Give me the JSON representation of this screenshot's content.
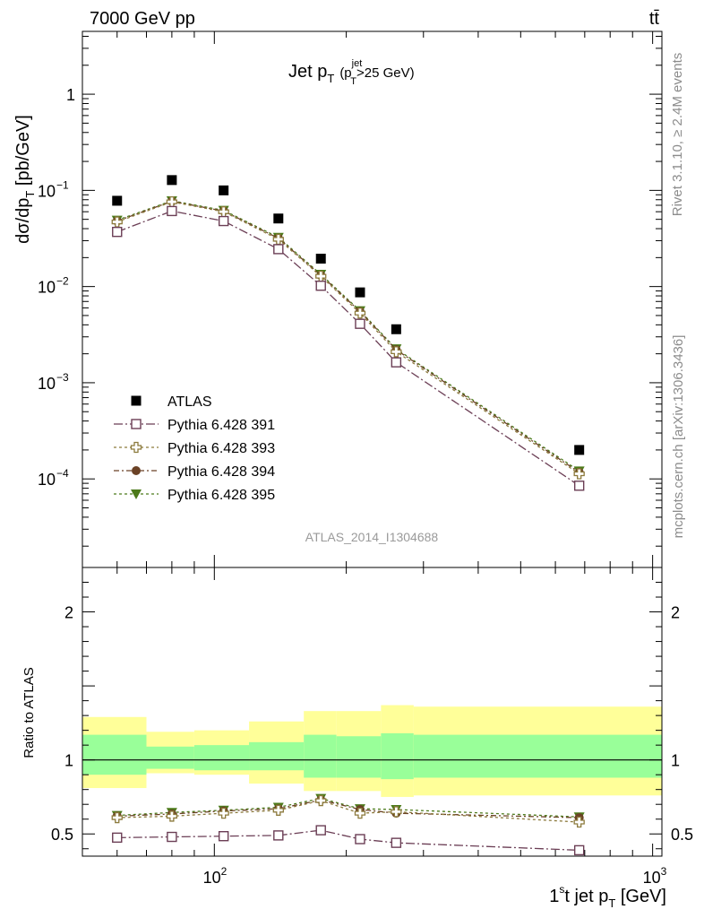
{
  "header": {
    "energy_label": "7000 GeV pp",
    "process_label": "tt̄",
    "rivet_label": "Rivet 3.1.10, ≥ 2.4M events",
    "mcplots_label": "mcplots.cern.ch [arXiv:1306.3436]",
    "analysis_label": "ATLAS_2014_I1304688",
    "plot_title_main": "Jet p",
    "plot_title_sub": "T",
    "plot_title_paren_open": "(p",
    "plot_title_paren_sup": "jet",
    "plot_title_paren_sub": "T",
    "plot_title_paren_rest": ">25 GeV)"
  },
  "axes": {
    "y_main_label_a": "dσ/dp",
    "y_main_label_sub": "T",
    "y_main_label_b": " [pb/GeV]",
    "y_ratio_label": "Ratio to ATLAS",
    "x_label_a": "1",
    "x_label_sup": "s",
    "x_label_b": "t jet p",
    "x_label_sub": "T",
    "x_label_c": " [GeV]",
    "x_tick_base_100": "10",
    "x_tick_exp_100": "2",
    "x_tick_base_1000": "10",
    "x_tick_exp_1000": "3",
    "y_ticks_main": [
      {
        "value": 1,
        "label": "1",
        "exp": ""
      },
      {
        "value": 0.1,
        "label": "10",
        "exp": "−1"
      },
      {
        "value": 0.01,
        "label": "10",
        "exp": "−2"
      },
      {
        "value": 0.001,
        "label": "10",
        "exp": "−3"
      },
      {
        "value": 0.0001,
        "label": "10",
        "exp": "−4"
      }
    ],
    "y_ticks_ratio": [
      {
        "value": 2,
        "label": "2"
      },
      {
        "value": 1,
        "label": "1"
      },
      {
        "value": 0.5,
        "label": "0.5"
      }
    ]
  },
  "legend": [
    {
      "label": "ATLAS",
      "marker": "square-filled",
      "color": "#000000"
    },
    {
      "label": "Pythia 6.428 391",
      "marker": "square-open",
      "color": "#6b3e55"
    },
    {
      "label": "Pythia 6.428 393",
      "marker": "cross-open",
      "color": "#8c7a3c"
    },
    {
      "label": "Pythia 6.428 394",
      "marker": "circle-filled",
      "color": "#6b4226"
    },
    {
      "label": "Pythia 6.428 395",
      "marker": "triangle-down",
      "color": "#4c7a1a"
    }
  ],
  "chart_data": [
    {
      "type": "scatter",
      "x_scale": "log",
      "y_scale": "log",
      "xlim": [
        50,
        1050
      ],
      "ylim": [
        1.2e-05,
        4.5
      ],
      "x": [
        60,
        80,
        105,
        140,
        175,
        215,
        260,
        680
      ],
      "series": [
        {
          "name": "ATLAS",
          "values": [
            0.078,
            0.128,
            0.1,
            0.051,
            0.0195,
            0.0087,
            0.0036,
            0.0002
          ]
        },
        {
          "name": "Pythia 6.428 391",
          "values": [
            0.037,
            0.061,
            0.048,
            0.0245,
            0.0102,
            0.0041,
            0.00163,
            8.5e-05
          ]
        },
        {
          "name": "Pythia 6.428 393",
          "values": [
            0.047,
            0.076,
            0.06,
            0.031,
            0.0128,
            0.0053,
            0.0021,
            0.000113
          ]
        },
        {
          "name": "Pythia 6.428 394",
          "values": [
            0.048,
            0.077,
            0.061,
            0.0318,
            0.0131,
            0.0055,
            0.0022,
            0.000117
          ]
        },
        {
          "name": "Pythia 6.428 395",
          "values": [
            0.049,
            0.078,
            0.062,
            0.0325,
            0.0134,
            0.0056,
            0.00225,
            0.000121
          ]
        }
      ],
      "grid": false
    },
    {
      "type": "line",
      "x_scale": "log",
      "xlim": [
        50,
        1050
      ],
      "ylim": [
        0.35,
        2.3
      ],
      "bin_edges": [
        50,
        70,
        90,
        120,
        160,
        190,
        240,
        285,
        1050
      ],
      "band_yellow": [
        [
          0.81,
          1.29
        ],
        [
          0.91,
          1.19
        ],
        [
          0.9,
          1.2
        ],
        [
          0.84,
          1.26
        ],
        [
          0.79,
          1.33
        ],
        [
          0.79,
          1.33
        ],
        [
          0.75,
          1.37
        ],
        [
          0.76,
          1.36
        ]
      ],
      "band_green": [
        [
          0.9,
          1.17
        ],
        [
          0.94,
          1.09
        ],
        [
          0.93,
          1.1
        ],
        [
          0.93,
          1.12
        ],
        [
          0.88,
          1.17
        ],
        [
          0.88,
          1.16
        ],
        [
          0.87,
          1.18
        ],
        [
          0.88,
          1.17
        ]
      ],
      "x": [
        60,
        80,
        105,
        140,
        175,
        215,
        260,
        680
      ],
      "series": [
        {
          "name": "Pythia 6.428 391",
          "values": [
            0.475,
            0.48,
            0.485,
            0.49,
            0.525,
            0.465,
            0.44,
            0.39
          ]
        },
        {
          "name": "Pythia 6.428 393",
          "values": [
            0.61,
            0.62,
            0.64,
            0.66,
            0.725,
            0.64,
            0.65,
            0.58
          ]
        },
        {
          "name": "Pythia 6.428 394",
          "values": [
            0.62,
            0.635,
            0.655,
            0.67,
            0.73,
            0.665,
            0.64,
            0.61
          ]
        },
        {
          "name": "Pythia 6.428 395",
          "values": [
            0.625,
            0.645,
            0.66,
            0.68,
            0.74,
            0.67,
            0.665,
            0.615
          ]
        }
      ]
    }
  ]
}
